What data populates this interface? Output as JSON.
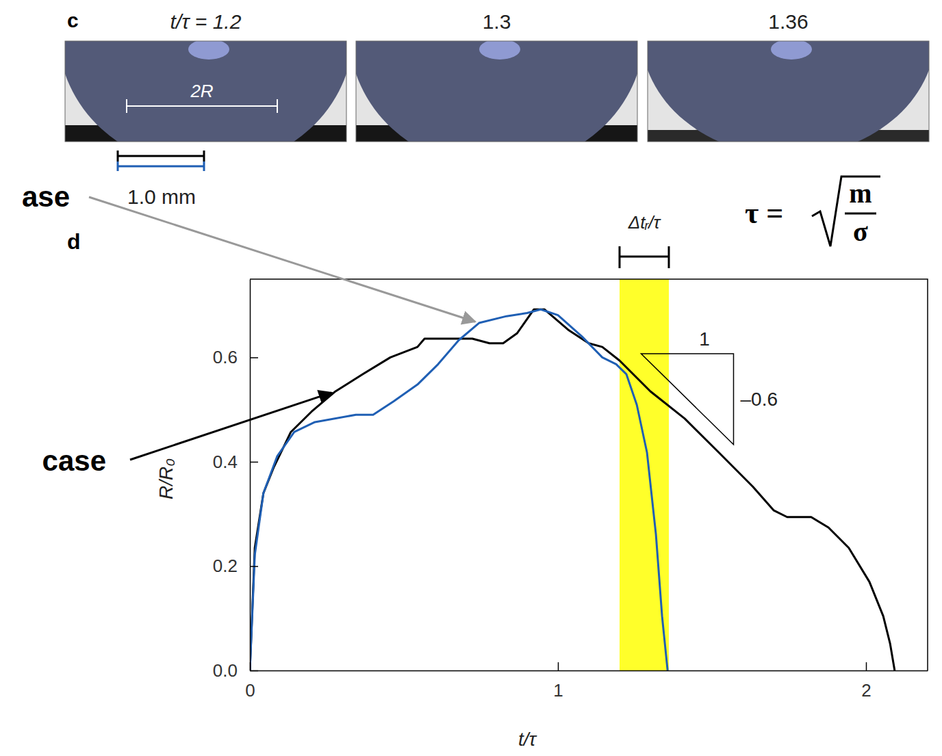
{
  "chart_data": {
    "type": "line",
    "panel_label": "d",
    "x_label": "t/τ",
    "y_label": "R/R₀",
    "xlim": [
      0,
      2.2
    ],
    "ylim": [
      0,
      0.75
    ],
    "xticks": [
      0,
      1,
      2
    ],
    "yticks": [
      {
        "value": 0,
        "label": "0.0"
      },
      0.2,
      0.4,
      0.6
    ],
    "series": [
      {
        "name": "case",
        "color": "#000000",
        "x": [
          0,
          0.016,
          0.044,
          0.078,
          0.133,
          0.2,
          0.278,
          0.367,
          0.456,
          0.544,
          0.567,
          0.722,
          0.778,
          0.822,
          0.867,
          0.922,
          0.956,
          1.033,
          1.1,
          1.144,
          1.2,
          1.3,
          1.411,
          1.522,
          1.633,
          1.7,
          1.744,
          1.822,
          1.878,
          1.944,
          2.011,
          2.056,
          2.078,
          2.093
        ],
        "values": [
          0,
          0.235,
          0.34,
          0.39,
          0.457,
          0.496,
          0.535,
          0.568,
          0.6,
          0.62,
          0.636,
          0.636,
          0.627,
          0.627,
          0.646,
          0.692,
          0.692,
          0.653,
          0.627,
          0.62,
          0.594,
          0.535,
          0.483,
          0.418,
          0.352,
          0.307,
          0.294,
          0.294,
          0.274,
          0.235,
          0.17,
          0.104,
          0.052,
          0
        ]
      },
      {
        "name": "ase",
        "color": "#1f5fb4",
        "x": [
          0,
          0.016,
          0.044,
          0.089,
          0.144,
          0.211,
          0.344,
          0.4,
          0.467,
          0.544,
          0.611,
          0.678,
          0.744,
          0.833,
          0.9,
          0.944,
          1.0,
          1.078,
          1.144,
          1.189,
          1.222,
          1.256,
          1.289,
          1.318,
          1.338,
          1.356
        ],
        "values": [
          0,
          0.222,
          0.34,
          0.411,
          0.457,
          0.476,
          0.49,
          0.49,
          0.516,
          0.548,
          0.587,
          0.633,
          0.666,
          0.679,
          0.685,
          0.692,
          0.681,
          0.64,
          0.6,
          0.587,
          0.568,
          0.509,
          0.418,
          0.261,
          0.104,
          0
        ]
      }
    ],
    "highlight": {
      "range": [
        1.2,
        1.36
      ],
      "label": "Δtᵣ/τ"
    },
    "slope": {
      "run_label": "1",
      "rise_label": "–0.6",
      "x": [
        1.27,
        1.57
      ],
      "y": [
        0.607,
        0.433
      ]
    },
    "formula": {
      "lhs": "τ =",
      "numerator": "m",
      "denominator": "σ"
    }
  },
  "photo_strip": {
    "panel_label": "c",
    "frames": [
      "t/τ = 1.2",
      "1.3",
      "1.36"
    ],
    "diameter_label": "2R",
    "scale_label": "1.0 mm"
  }
}
